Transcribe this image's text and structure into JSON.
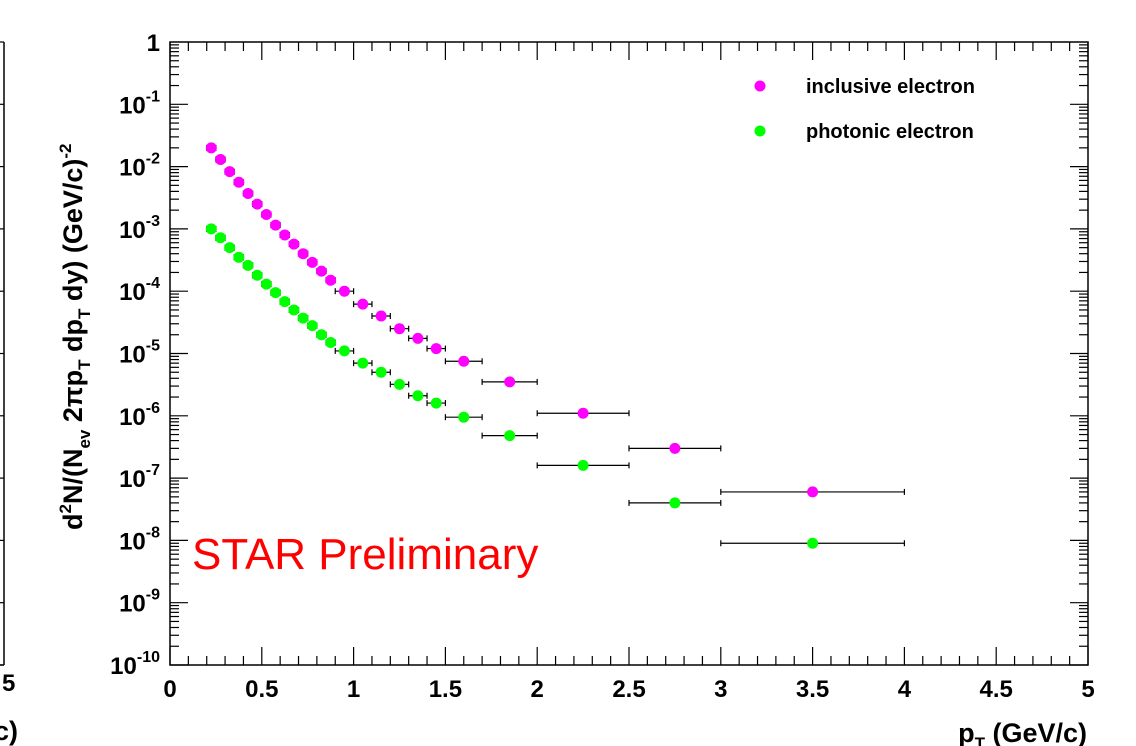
{
  "chart_data": [
    {
      "type": "scatter",
      "note": "left panel, partially visible (cut off at left edge)",
      "xlabel_fragment": "c)",
      "xtick_labels_visible": [
        "5"
      ]
    },
    {
      "type": "scatter",
      "xlabel": "p  (GeV/c)",
      "ylabel": "d²N/(N_ev 2πp_T dp_T dy) (GeV/c)⁻²",
      "xscale": "linear",
      "yscale": "log",
      "xlim": [
        0,
        5
      ],
      "ylim": [
        1e-10,
        1
      ],
      "x_ticks": [
        0,
        0.5,
        1,
        1.5,
        2,
        2.5,
        3,
        3.5,
        4,
        4.5,
        5
      ],
      "x_tick_labels": [
        "0",
        "0.5",
        "1",
        "1.5",
        "2",
        "2.5",
        "3",
        "3.5",
        "4",
        "4.5",
        "5"
      ],
      "y_tick_labels": [
        {
          "value": 1,
          "base": "1",
          "exp": ""
        },
        {
          "value": 0.1,
          "base": "10",
          "exp": "-1"
        },
        {
          "value": 0.01,
          "base": "10",
          "exp": "-2"
        },
        {
          "value": 0.001,
          "base": "10",
          "exp": "-3"
        },
        {
          "value": 0.0001,
          "base": "10",
          "exp": "-4"
        },
        {
          "value": 1e-05,
          "base": "10",
          "exp": "-5"
        },
        {
          "value": 1e-06,
          "base": "10",
          "exp": "-6"
        },
        {
          "value": 1e-07,
          "base": "10",
          "exp": "-7"
        },
        {
          "value": 1e-08,
          "base": "10",
          "exp": "-8"
        },
        {
          "value": 1e-09,
          "base": "10",
          "exp": "-9"
        },
        {
          "value": 1e-10,
          "base": "10",
          "exp": "-10"
        }
      ],
      "legend_position": "top-right",
      "annotation": {
        "text": "STAR Preliminary",
        "color": "#ff0000"
      },
      "series": [
        {
          "name": "inclusive electron",
          "color": "#ff00ff",
          "points": [
            {
              "x": 0.225,
              "y": 0.02,
              "xerr": 0.025
            },
            {
              "x": 0.275,
              "y": 0.013,
              "xerr": 0.025
            },
            {
              "x": 0.325,
              "y": 0.0083,
              "xerr": 0.025
            },
            {
              "x": 0.375,
              "y": 0.0056,
              "xerr": 0.025
            },
            {
              "x": 0.425,
              "y": 0.0037,
              "xerr": 0.025
            },
            {
              "x": 0.475,
              "y": 0.0025,
              "xerr": 0.025
            },
            {
              "x": 0.525,
              "y": 0.0017,
              "xerr": 0.025
            },
            {
              "x": 0.575,
              "y": 0.00115,
              "xerr": 0.025
            },
            {
              "x": 0.625,
              "y": 0.0008,
              "xerr": 0.025
            },
            {
              "x": 0.675,
              "y": 0.00057,
              "xerr": 0.025
            },
            {
              "x": 0.725,
              "y": 0.0004,
              "xerr": 0.025
            },
            {
              "x": 0.775,
              "y": 0.00029,
              "xerr": 0.025
            },
            {
              "x": 0.825,
              "y": 0.00021,
              "xerr": 0.025
            },
            {
              "x": 0.875,
              "y": 0.00015,
              "xerr": 0.025
            },
            {
              "x": 0.95,
              "y": 0.0001,
              "xerr": 0.05
            },
            {
              "x": 1.05,
              "y": 6.2e-05,
              "xerr": 0.05
            },
            {
              "x": 1.15,
              "y": 4e-05,
              "xerr": 0.05
            },
            {
              "x": 1.25,
              "y": 2.5e-05,
              "xerr": 0.05
            },
            {
              "x": 1.35,
              "y": 1.75e-05,
              "xerr": 0.05
            },
            {
              "x": 1.45,
              "y": 1.2e-05,
              "xerr": 0.05
            },
            {
              "x": 1.6,
              "y": 7.5e-06,
              "xerr": 0.1
            },
            {
              "x": 1.85,
              "y": 3.5e-06,
              "xerr": 0.15
            },
            {
              "x": 2.25,
              "y": 1.1e-06,
              "xerr": 0.25
            },
            {
              "x": 2.75,
              "y": 3e-07,
              "xerr": 0.25
            },
            {
              "x": 3.5,
              "y": 6e-08,
              "xerr": 0.5
            }
          ]
        },
        {
          "name": "photonic electron",
          "color": "#00ff00",
          "points": [
            {
              "x": 0.225,
              "y": 0.001,
              "xerr": 0.025
            },
            {
              "x": 0.275,
              "y": 0.00072,
              "xerr": 0.025
            },
            {
              "x": 0.325,
              "y": 0.0005,
              "xerr": 0.025
            },
            {
              "x": 0.375,
              "y": 0.00035,
              "xerr": 0.025
            },
            {
              "x": 0.425,
              "y": 0.00026,
              "xerr": 0.025
            },
            {
              "x": 0.475,
              "y": 0.00018,
              "xerr": 0.025
            },
            {
              "x": 0.525,
              "y": 0.00013,
              "xerr": 0.025
            },
            {
              "x": 0.575,
              "y": 9.5e-05,
              "xerr": 0.025
            },
            {
              "x": 0.625,
              "y": 6.8e-05,
              "xerr": 0.025
            },
            {
              "x": 0.675,
              "y": 5e-05,
              "xerr": 0.025
            },
            {
              "x": 0.725,
              "y": 3.7e-05,
              "xerr": 0.025
            },
            {
              "x": 0.775,
              "y": 2.8e-05,
              "xerr": 0.025
            },
            {
              "x": 0.825,
              "y": 2e-05,
              "xerr": 0.025
            },
            {
              "x": 0.875,
              "y": 1.5e-05,
              "xerr": 0.025
            },
            {
              "x": 0.95,
              "y": 1.1e-05,
              "xerr": 0.05
            },
            {
              "x": 1.05,
              "y": 7e-06,
              "xerr": 0.05
            },
            {
              "x": 1.15,
              "y": 5e-06,
              "xerr": 0.05
            },
            {
              "x": 1.25,
              "y": 3.2e-06,
              "xerr": 0.05
            },
            {
              "x": 1.35,
              "y": 2.1e-06,
              "xerr": 0.05
            },
            {
              "x": 1.45,
              "y": 1.6e-06,
              "xerr": 0.05
            },
            {
              "x": 1.6,
              "y": 9.5e-07,
              "xerr": 0.1
            },
            {
              "x": 1.85,
              "y": 4.8e-07,
              "xerr": 0.15
            },
            {
              "x": 2.25,
              "y": 1.6e-07,
              "xerr": 0.25
            },
            {
              "x": 2.75,
              "y": 4e-08,
              "xerr": 0.25
            },
            {
              "x": 3.5,
              "y": 9e-09,
              "xerr": 0.5
            }
          ]
        }
      ]
    }
  ]
}
